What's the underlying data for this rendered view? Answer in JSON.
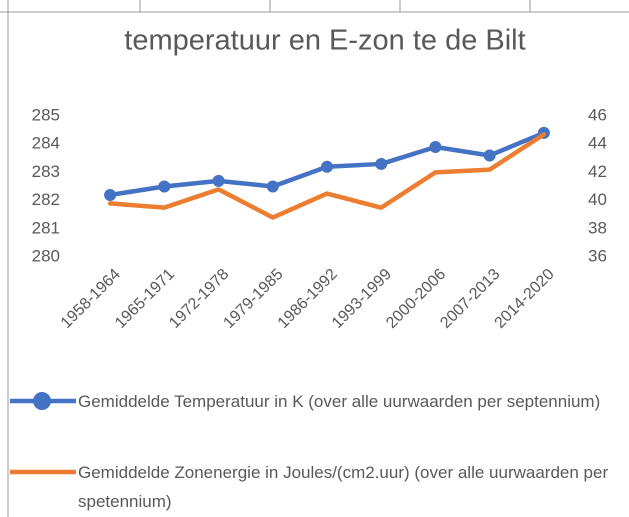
{
  "chart_data": {
    "type": "line",
    "title": "temperatuur en E-zon te de Bilt",
    "categories": [
      "1958-1964",
      "1965-1971",
      "1972-1978",
      "1979-1985",
      "1986-1992",
      "1993-1999",
      "2000-2006",
      "2007-2013",
      "2014-2020"
    ],
    "series": [
      {
        "name": "Gemiddelde Temperatuur in K (over alle uurwaarden per septennium)",
        "color": "#4472c4",
        "marker": true,
        "values": [
          282.2,
          282.5,
          282.7,
          282.5,
          283.2,
          283.3,
          283.9,
          283.6,
          284.4
        ]
      },
      {
        "name": "Gemiddelde Zonenergie in Joules/(cm2.uur) (over alle uurwaarden per spetennium)",
        "color": "#ed7d31",
        "axis": "y2",
        "marker": false,
        "values": [
          39.8,
          39.5,
          40.8,
          38.8,
          40.5,
          39.5,
          42.0,
          42.2,
          44.7
        ]
      }
    ],
    "ylim": [
      280,
      285
    ],
    "yticks": [
      280,
      281,
      282,
      283,
      284,
      285
    ],
    "y2lim": [
      36,
      46
    ],
    "y2ticks": [
      36,
      38,
      40,
      42,
      44,
      46
    ],
    "legend": "bottom"
  }
}
